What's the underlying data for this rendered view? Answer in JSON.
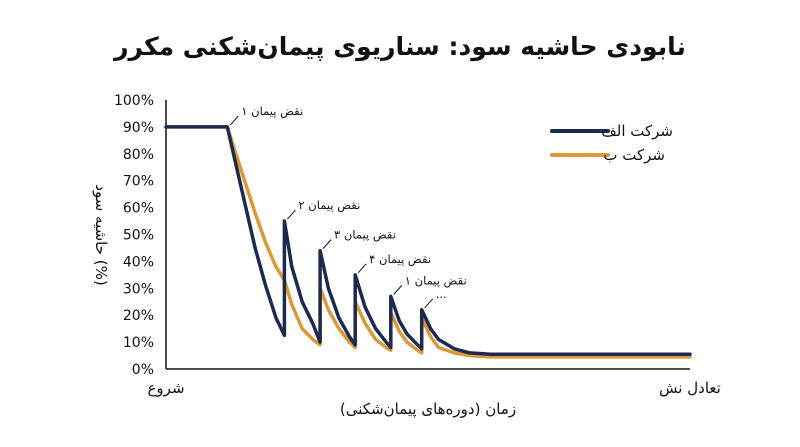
{
  "chart_data": {
    "type": "line",
    "title": "نابودی حاشیه سود: سناریوی پیمان‌شکنی مکرر",
    "xlabel": "زمان (دوره‌های پیمان‌شکنی)",
    "ylabel": "حاشیه سود (%)",
    "x_start_label": "شروع",
    "x_end_label": "تعادل نش",
    "ylim": [
      0,
      100
    ],
    "xlim": [
      0,
      100
    ],
    "yticks": [
      "0%",
      "10%",
      "20%",
      "30%",
      "40%",
      "50%",
      "60%",
      "70%",
      "80%",
      "90%",
      "100%"
    ],
    "legend_position": "top-right",
    "grid": false,
    "colors": {
      "series_a": "#1b2a4e",
      "series_b": "#d9993b"
    },
    "series": [
      {
        "name": "شرکت الف",
        "color": "#1b2a4e",
        "x": [
          0,
          11.7,
          13,
          15,
          17,
          19,
          21,
          22.6,
          22.6,
          24,
          26,
          28,
          29.4,
          29.4,
          31,
          33,
          35,
          36.1,
          36.1,
          38,
          40,
          42,
          42.9,
          42.9,
          44.5,
          46,
          48,
          48.8,
          48.8,
          50.5,
          52,
          55,
          58,
          62,
          70,
          80,
          100
        ],
        "values": [
          90,
          90,
          79,
          62,
          45,
          31,
          19,
          12.5,
          55,
          38,
          25,
          17,
          10,
          44,
          30,
          19,
          12,
          9,
          35,
          23,
          15,
          10,
          8,
          27,
          18,
          13,
          9,
          7.5,
          22,
          15,
          11,
          7.5,
          6,
          5.5,
          5.5,
          5.5,
          5.5
        ]
      },
      {
        "name": "شرکت ب",
        "color": "#d9993b",
        "x": [
          0,
          11.7,
          13,
          15,
          17,
          19,
          21,
          22.6,
          24,
          26,
          28,
          29.4,
          29.4,
          31,
          33,
          35,
          36.1,
          36.1,
          38,
          40,
          42,
          42.9,
          42.9,
          44.5,
          46,
          48,
          48.8,
          48.8,
          50.5,
          52,
          55,
          58,
          62,
          70,
          80,
          100
        ],
        "values": [
          90,
          90,
          82,
          70,
          58,
          47,
          38,
          33,
          24,
          15,
          11,
          9,
          30,
          22,
          15,
          10,
          8,
          25,
          17,
          11,
          8,
          7,
          21,
          14,
          10,
          7,
          6,
          19,
          12,
          8,
          6,
          5,
          4.5,
          4.5,
          4.5,
          4.5
        ]
      }
    ],
    "annotations": [
      {
        "text": "نقض پیمان ۱",
        "x": 11.7,
        "y": 90
      },
      {
        "text": "نقض پیمان ۲",
        "x": 22.6,
        "y": 55
      },
      {
        "text": "نقض پیمان ۳",
        "x": 29.4,
        "y": 44
      },
      {
        "text": "نقض پیمان ۴",
        "x": 36.1,
        "y": 35
      },
      {
        "text": "نقض پیمان ۱",
        "x": 42.9,
        "y": 27
      },
      {
        "text": "...",
        "x": 48.8,
        "y": 22
      }
    ]
  }
}
